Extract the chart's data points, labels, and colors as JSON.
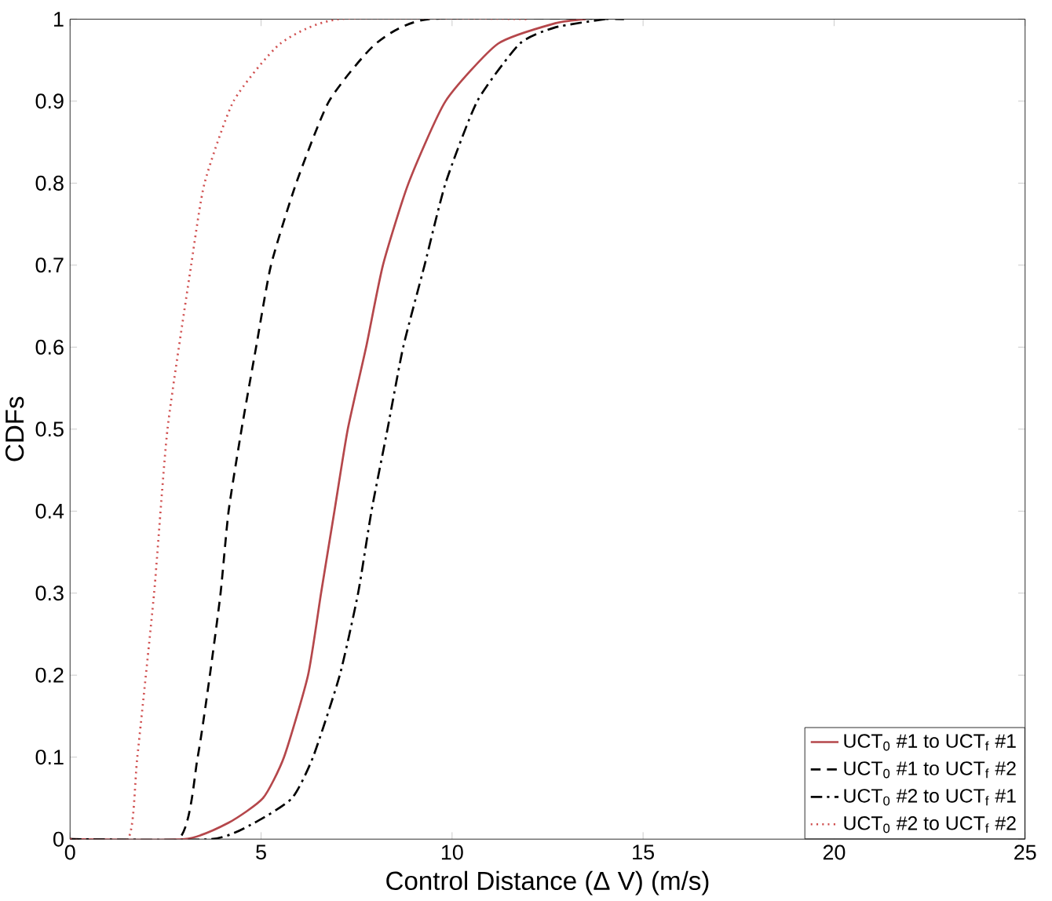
{
  "chart_data": {
    "type": "line",
    "xlabel": "Control Distance (Δ V) (m/s)",
    "ylabel": "CDFs",
    "xlim": [
      0,
      25
    ],
    "ylim": [
      0,
      1
    ],
    "xticks": [
      0,
      5,
      10,
      15,
      20,
      25
    ],
    "yticks": [
      0,
      0.1,
      0.2,
      0.3,
      0.4,
      0.5,
      0.6,
      0.7,
      0.8,
      0.9,
      1
    ],
    "legend": "bottom right",
    "series": [
      {
        "name": "UCT$_{0}$ #1 to UCT$_{f}$ #1",
        "color": "#b5474b",
        "line_style": "solid",
        "x": [
          0,
          3.0,
          4.15,
          5.05,
          5.6,
          6.23,
          6.57,
          6.92,
          7.27,
          7.75,
          8.19,
          8.86,
          9.83,
          11.2,
          12.7,
          13.5
        ],
        "values": [
          0,
          0,
          0.02,
          0.05,
          0.1,
          0.2,
          0.3,
          0.4,
          0.5,
          0.6,
          0.7,
          0.8,
          0.9,
          0.97,
          0.995,
          1
        ]
      },
      {
        "name": "UCT$_{0}$ #1 to UCT$_{f}$ #2",
        "color": "#000000",
        "line_style": "dashed",
        "x": [
          0,
          2.83,
          3.34,
          3.66,
          3.94,
          4.15,
          4.49,
          4.87,
          5.26,
          5.92,
          6.78,
          8.0,
          9.4,
          14.5
        ],
        "values": [
          0,
          0,
          0.1,
          0.2,
          0.3,
          0.4,
          0.5,
          0.6,
          0.7,
          0.8,
          0.9,
          0.97,
          1,
          1
        ]
      },
      {
        "name": "UCT$_{0}$ #2 to UCT$_{f}$ #1",
        "color": "#000000",
        "line_style": "dashdot",
        "x": [
          0,
          3.7,
          4.83,
          5.81,
          6.36,
          7.06,
          7.54,
          7.89,
          8.31,
          8.72,
          9.28,
          9.83,
          10.66,
          11.77,
          12.7,
          14.0
        ],
        "values": [
          0,
          0,
          0.02,
          0.05,
          0.1,
          0.2,
          0.3,
          0.4,
          0.5,
          0.6,
          0.7,
          0.8,
          0.9,
          0.97,
          0.99,
          1
        ]
      },
      {
        "name": "UCT$_{0}$ #2 to UCT$_{f}$ #2",
        "color": "#d05050",
        "line_style": "dotted",
        "x": [
          0,
          1.51,
          1.76,
          2.2,
          2.55,
          3.17,
          3.52,
          4.28,
          5.5,
          7.06,
          12.0
        ],
        "values": [
          0,
          0,
          0.1,
          0.3,
          0.5,
          0.7,
          0.8,
          0.9,
          0.97,
          1,
          1
        ]
      }
    ]
  }
}
